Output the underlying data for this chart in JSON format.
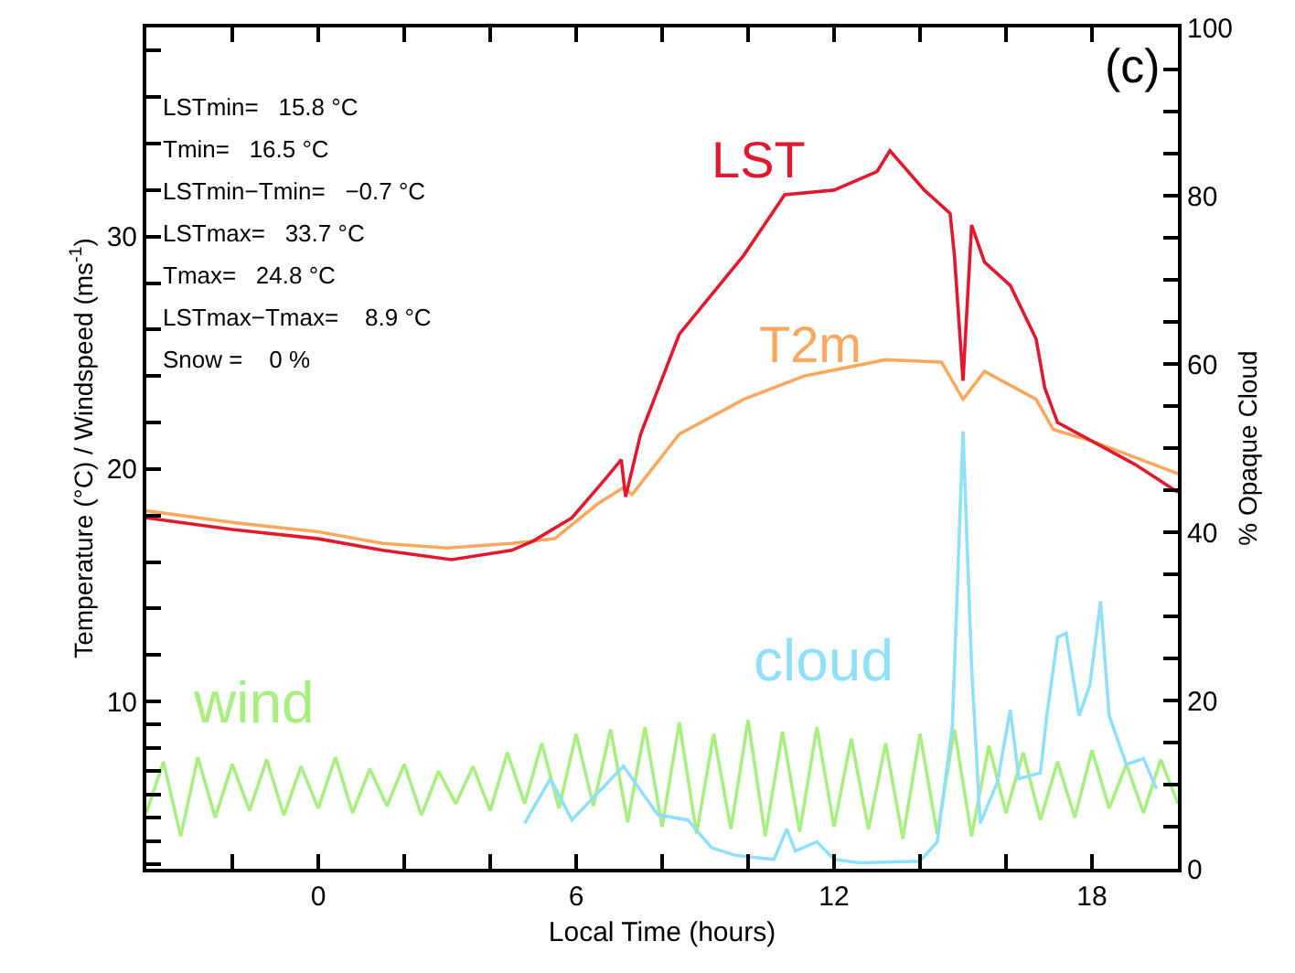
{
  "chart_data": {
    "type": "line",
    "xlabel": "Local Time (hours)",
    "ylabel": "Temperature (°C) / Windspeed (ms$^{-1}$)",
    "y2label": "% Opaque Cloud",
    "xlim": [
      -4,
      20
    ],
    "xticks": [
      {
        "value": -4,
        "label": null
      },
      {
        "value": -2,
        "label": null
      },
      0,
      {
        "value": 2,
        "label": null
      },
      {
        "value": 4,
        "label": null
      },
      6,
      {
        "value": 8,
        "label": null
      },
      {
        "value": 10,
        "label": null
      },
      12,
      {
        "value": 14,
        "label": null
      },
      {
        "value": 16,
        "label": null
      },
      18,
      {
        "value": 20,
        "label": null
      }
    ],
    "ylim": [
      2.8,
      39
    ],
    "yticks": [
      {
        "value": 3,
        "label": null
      },
      {
        "value": 4,
        "label": null
      },
      {
        "value": 5,
        "label": null
      },
      {
        "value": 6,
        "label": null
      },
      {
        "value": 7,
        "label": null
      },
      {
        "value": 8,
        "label": null
      },
      {
        "value": 9,
        "label": null
      },
      10,
      {
        "value": 12,
        "label": null
      },
      {
        "value": 14,
        "label": null
      },
      {
        "value": 16,
        "label": null
      },
      {
        "value": 18,
        "label": null
      },
      20,
      {
        "value": 22,
        "label": null
      },
      {
        "value": 24,
        "label": null
      },
      {
        "value": 26,
        "label": null
      },
      {
        "value": 28,
        "label": null
      },
      30,
      {
        "value": 32,
        "label": null
      },
      {
        "value": 34,
        "label": null
      },
      {
        "value": 36,
        "label": null
      },
      {
        "value": 38,
        "label": null
      }
    ],
    "y2lim": [
      0,
      100
    ],
    "y2ticks": [
      0,
      {
        "value": 5,
        "label": null
      },
      {
        "value": 10,
        "label": null
      },
      {
        "value": 15,
        "label": null
      },
      20,
      {
        "value": 25,
        "label": null
      },
      {
        "value": 30,
        "label": null
      },
      {
        "value": 35,
        "label": null
      },
      40,
      {
        "value": 45,
        "label": null
      },
      {
        "value": 50,
        "label": null
      },
      {
        "value": 55,
        "label": null
      },
      60,
      {
        "value": 65,
        "label": null
      },
      {
        "value": 70,
        "label": null
      },
      {
        "value": 75,
        "label": null
      },
      80,
      {
        "value": 85,
        "label": null
      },
      {
        "value": 90,
        "label": null
      },
      {
        "value": 95,
        "label": null
      },
      100
    ],
    "legend": false,
    "marker": "none",
    "line_style": "solid",
    "series": [
      {
        "name": "wind",
        "color": "#a8ee80",
        "x": [
          -4,
          -3.6,
          -3.2,
          -2.8,
          -2.4,
          -2,
          -1.6,
          -1.2,
          -0.8,
          -0.4,
          0,
          0.4,
          0.8,
          1.2,
          1.6,
          2,
          2.4,
          2.8,
          3.2,
          3.6,
          4,
          4.4,
          4.8,
          5.2,
          5.6,
          6,
          6.4,
          6.8,
          7.2,
          7.6,
          8,
          8.4,
          8.8,
          9.2,
          9.6,
          10,
          10.4,
          10.8,
          11.2,
          11.6,
          12,
          12.4,
          12.8,
          13.2,
          13.6,
          14,
          14.4,
          14.8,
          15.2,
          15.6,
          16,
          16.4,
          16.8,
          17.2,
          17.6,
          18,
          18.4,
          18.8,
          19.2,
          19.6,
          20
        ],
        "values": [
          5.2,
          7.4,
          4.2,
          7.6,
          5,
          7.3,
          5.3,
          7.5,
          5.1,
          7.2,
          5.4,
          7.6,
          5.2,
          7.1,
          5.5,
          7.3,
          5.1,
          7,
          5.6,
          7.2,
          5.3,
          7.8,
          5.6,
          8.2,
          5.4,
          8.6,
          5.5,
          8.8,
          4.8,
          8.9,
          4.6,
          9.1,
          4.3,
          8.6,
          4.5,
          9.2,
          4.2,
          8.7,
          4.4,
          8.9,
          4.6,
          8.4,
          4.5,
          8.2,
          4.1,
          8.6,
          4.3,
          8.8,
          4.2,
          8.1,
          5.2,
          7.8,
          4.9,
          7.4,
          5,
          7.9,
          5.4,
          7.3,
          5.2,
          7.5,
          5.6
        ]
      },
      {
        "name": "cloud",
        "color": "#8fe0f8",
        "axis": "y2",
        "x": [
          4.8,
          5.4,
          5.9,
          7.1,
          7.9,
          8.6,
          9.15,
          9.7,
          10.6,
          10.9,
          11.1,
          11.6,
          12,
          12.6,
          14,
          14.4,
          14.75,
          15,
          15.2,
          15.4,
          15.8,
          16.1,
          16.3,
          16.8,
          16.95,
          17.2,
          17.4,
          17.7,
          17.95,
          18.2,
          18.4,
          18.8,
          19.2,
          19.5
        ],
        "values": [
          5.4,
          10.7,
          5.8,
          12.2,
          6.4,
          5.8,
          2.5,
          1.6,
          1.1,
          4.7,
          2.1,
          3.2,
          1.1,
          0.7,
          0.9,
          3.2,
          16.8,
          52,
          24,
          5.4,
          10.3,
          18.9,
          10.7,
          11.4,
          18.2,
          27.5,
          28,
          18.2,
          21.8,
          31.8,
          18.2,
          12.4,
          13.1,
          9.5
        ]
      },
      {
        "name": "T2m",
        "color": "#f9a860",
        "x": [
          -4,
          -2,
          0,
          1.5,
          3,
          4.5,
          5.5,
          6.5,
          7.1,
          7.3,
          8.4,
          9.9,
          11.3,
          13.2,
          14.5,
          15,
          15.5,
          16.7,
          17.1,
          18,
          19,
          20
        ],
        "values": [
          18.2,
          17.7,
          17.3,
          16.8,
          16.6,
          16.8,
          17,
          18.5,
          19.2,
          18.9,
          21.5,
          23,
          24,
          24.7,
          24.6,
          23,
          24.2,
          23,
          21.7,
          21.2,
          20.5,
          19.8
        ]
      },
      {
        "name": "LST",
        "color": "#e0192e",
        "x": [
          -4,
          -2,
          0,
          1.5,
          3.1,
          4.5,
          5,
          5.9,
          6.6,
          7.05,
          7.15,
          7.5,
          8.4,
          9.9,
          10.85,
          12,
          13,
          13.3,
          14.1,
          14.7,
          14.8,
          15,
          15.2,
          15.5,
          16.1,
          16.7,
          16.9,
          17.2,
          18,
          19,
          20
        ],
        "values": [
          17.9,
          17.4,
          17,
          16.5,
          16.1,
          16.5,
          16.9,
          17.9,
          19.4,
          20.4,
          18.8,
          21.5,
          25.8,
          29.2,
          31.8,
          32,
          32.8,
          33.7,
          32,
          31,
          29.2,
          23.8,
          30.5,
          28.9,
          27.9,
          25.6,
          23.5,
          22,
          21.2,
          20.2,
          19
        ]
      }
    ],
    "annotations": [
      "LSTmin=   15.8 °C",
      "Tmin=   16.5 °C",
      "LSTmin−Tmin=   −0.7 °C",
      "LSTmax=   33.7 °C",
      "Tmax=   24.8 °C",
      "LSTmax−Tmax=    8.9 °C",
      "Snow =    0 %",
      "(c)"
    ]
  }
}
